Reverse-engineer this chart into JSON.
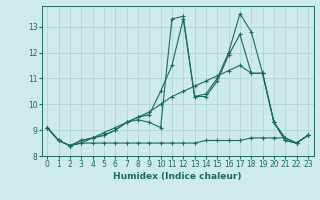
{
  "title": "",
  "xlabel": "Humidex (Indice chaleur)",
  "bg_color": "#ceeaea",
  "grid_color": "#aacfcf",
  "line_color": "#1a6b5a",
  "xlim": [
    -0.5,
    23.5
  ],
  "ylim": [
    8,
    13.8
  ],
  "yticks": [
    8,
    9,
    10,
    11,
    12,
    13
  ],
  "xticks": [
    0,
    1,
    2,
    3,
    4,
    5,
    6,
    7,
    8,
    9,
    10,
    11,
    12,
    13,
    14,
    15,
    16,
    17,
    18,
    19,
    20,
    21,
    22,
    23
  ],
  "series": [
    {
      "x": [
        0,
        1,
        2,
        3,
        4,
        5,
        6,
        7,
        8,
        9,
        10,
        11,
        12,
        13,
        14,
        15,
        16,
        17,
        18,
        19,
        20,
        21,
        22,
        23
      ],
      "y": [
        9.1,
        8.6,
        8.4,
        8.6,
        8.7,
        8.8,
        9.0,
        9.3,
        9.4,
        9.3,
        9.1,
        13.3,
        13.4,
        10.3,
        10.4,
        11.0,
        12.0,
        13.5,
        12.8,
        11.2,
        9.3,
        8.6,
        8.5,
        8.8
      ]
    },
    {
      "x": [
        0,
        1,
        2,
        3,
        4,
        5,
        6,
        7,
        8,
        9,
        10,
        11,
        12,
        13,
        14,
        15,
        16,
        17,
        18,
        19,
        20,
        21,
        22,
        23
      ],
      "y": [
        9.1,
        8.6,
        8.4,
        8.6,
        8.7,
        8.8,
        9.0,
        9.3,
        9.5,
        9.6,
        10.5,
        11.5,
        13.3,
        10.3,
        10.3,
        10.9,
        11.9,
        12.7,
        11.2,
        11.2,
        9.3,
        8.7,
        8.5,
        8.8
      ]
    },
    {
      "x": [
        0,
        1,
        2,
        3,
        4,
        5,
        6,
        7,
        8,
        9,
        10,
        11,
        12,
        13,
        14,
        15,
        16,
        17,
        18,
        19,
        20,
        21,
        22,
        23
      ],
      "y": [
        9.1,
        8.6,
        8.4,
        8.5,
        8.5,
        8.5,
        8.5,
        8.5,
        8.5,
        8.5,
        8.5,
        8.5,
        8.5,
        8.5,
        8.6,
        8.6,
        8.6,
        8.6,
        8.7,
        8.7,
        8.7,
        8.7,
        8.5,
        8.8
      ]
    },
    {
      "x": [
        0,
        1,
        2,
        3,
        4,
        5,
        6,
        7,
        8,
        9,
        10,
        11,
        12,
        13,
        14,
        15,
        16,
        17,
        18,
        19,
        20,
        21,
        22,
        23
      ],
      "y": [
        9.1,
        8.6,
        8.4,
        8.5,
        8.7,
        8.9,
        9.1,
        9.3,
        9.5,
        9.7,
        10.0,
        10.3,
        10.5,
        10.7,
        10.9,
        11.1,
        11.3,
        11.5,
        11.2,
        11.2,
        9.3,
        8.6,
        8.5,
        8.8
      ]
    }
  ]
}
